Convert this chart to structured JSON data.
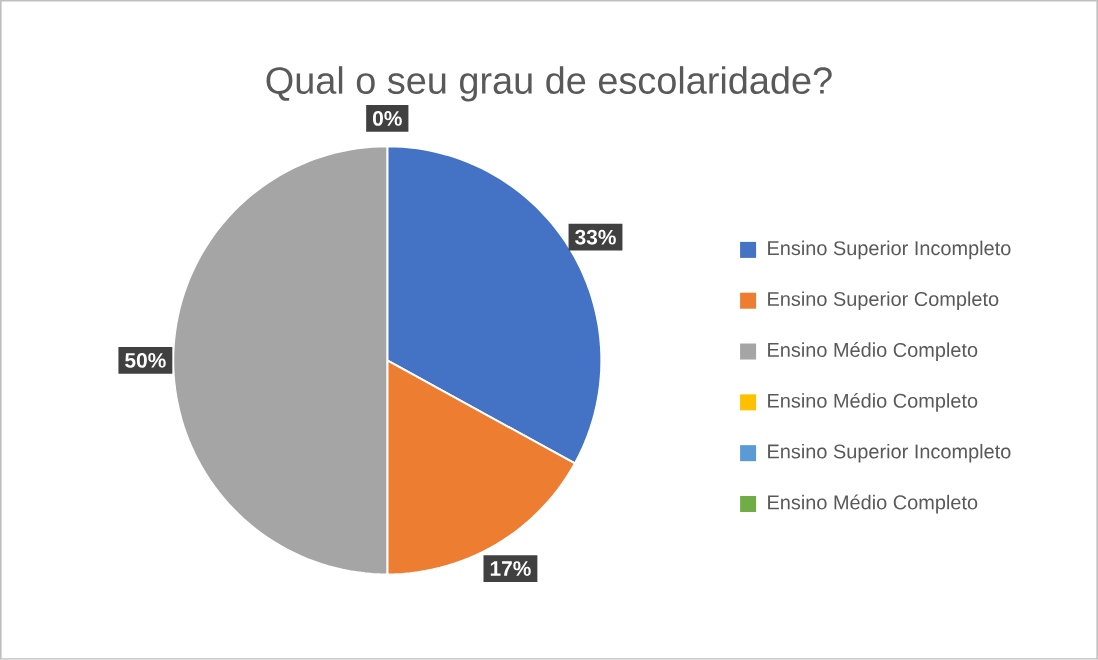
{
  "chart_data": {
    "type": "pie",
    "title": "Qual o seu grau de escolaridade?",
    "categories": [
      "Ensino Superior Incompleto",
      "Ensino Superior Completo",
      "Ensino Médio Completo",
      "Ensino Médio Completo",
      "Ensino Superior Incompleto",
      "Ensino Médio Completo"
    ],
    "values": [
      33,
      17,
      50,
      0,
      0,
      0
    ],
    "colors": [
      "#4472c4",
      "#ed7d31",
      "#a5a5a5",
      "#ffc000",
      "#5b9bd5",
      "#70ad47"
    ],
    "value_labels": [
      "33%",
      "17%",
      "50%",
      "0%",
      null,
      null
    ],
    "legend": "right"
  }
}
